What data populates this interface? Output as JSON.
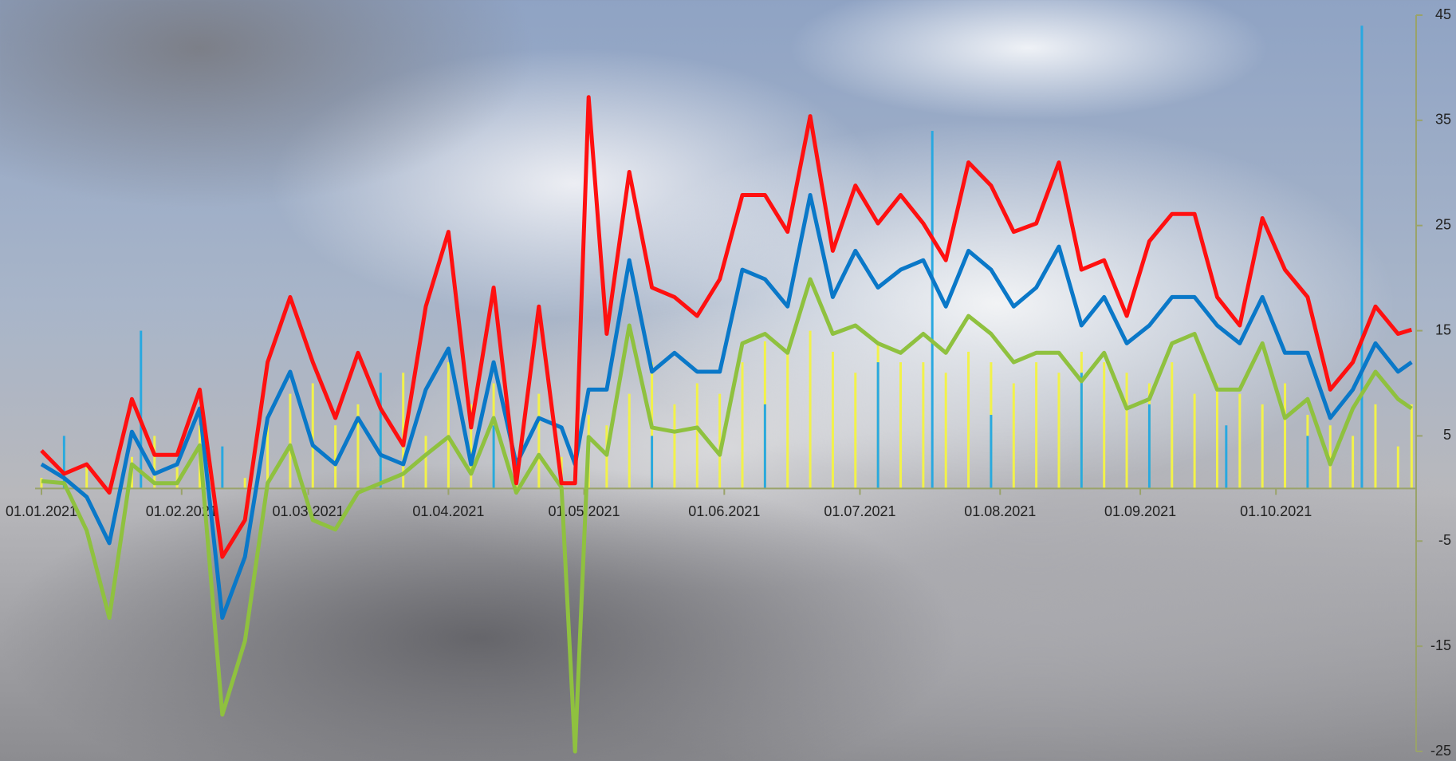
{
  "chart_data": {
    "type": "line",
    "x": [
      "01.01.2021",
      "06.01.2021",
      "11.01.2021",
      "16.01.2021",
      "21.01.2021",
      "26.01.2021",
      "31.01.2021",
      "05.02.2021",
      "10.02.2021",
      "15.02.2021",
      "20.02.2021",
      "25.02.2021",
      "02.03.2021",
      "07.03.2021",
      "12.03.2021",
      "17.03.2021",
      "22.03.2021",
      "27.03.2021",
      "01.04.2021",
      "06.04.2021",
      "11.04.2021",
      "16.04.2021",
      "21.04.2021",
      "26.04.2021",
      "29.04.2021",
      "02.05.2021",
      "06.05.2021",
      "11.05.2021",
      "16.05.2021",
      "21.05.2021",
      "26.05.2021",
      "31.05.2021",
      "05.06.2021",
      "10.06.2021",
      "15.06.2021",
      "20.06.2021",
      "25.06.2021",
      "30.06.2021",
      "05.07.2021",
      "10.07.2021",
      "15.07.2021",
      "20.07.2021",
      "25.07.2021",
      "30.07.2021",
      "04.08.2021",
      "09.08.2021",
      "14.08.2021",
      "19.08.2021",
      "24.08.2021",
      "29.08.2021",
      "03.09.2021",
      "08.09.2021",
      "13.09.2021",
      "18.09.2021",
      "23.09.2021",
      "28.09.2021",
      "03.10.2021",
      "08.10.2021",
      "13.10.2021",
      "18.10.2021",
      "23.10.2021",
      "28.10.2021",
      "31.10.2021"
    ],
    "series": [
      {
        "kind": "bar",
        "color": "#f2f24a",
        "values": [
          1,
          4,
          2,
          0,
          3,
          5,
          2,
          6,
          0,
          1,
          7,
          9,
          10,
          6,
          8,
          9,
          11,
          5,
          12,
          8,
          10,
          2,
          9,
          3,
          0,
          7,
          6,
          9,
          12,
          8,
          10,
          9,
          12,
          14,
          13,
          15,
          13,
          11,
          14,
          12,
          12,
          11,
          13,
          12,
          10,
          12,
          11,
          13,
          12,
          11,
          10,
          12,
          9,
          10,
          9,
          8,
          10,
          7,
          6,
          5,
          8,
          4,
          8
        ]
      },
      {
        "kind": "bar",
        "color": "#29a8e0",
        "x": [
          "06.01.2021",
          "23.01.2021",
          "10.02.2021",
          "17.03.2021",
          "11.04.2021",
          "16.05.2021",
          "10.06.2021",
          "05.07.2021",
          "17.07.2021",
          "30.07.2021",
          "19.08.2021",
          "03.09.2021",
          "20.09.2021",
          "08.10.2021",
          "20.10.2021"
        ],
        "values": [
          5,
          15,
          4,
          11,
          6,
          5,
          8,
          12,
          34,
          7,
          11,
          8,
          6,
          5,
          44
        ]
      },
      {
        "kind": "line",
        "color": "#8fc13f",
        "values": [
          0.7,
          0.5,
          -4,
          -12.3,
          2.3,
          0.5,
          0.5,
          4.1,
          -21.5,
          -14.5,
          0.5,
          4.1,
          -3,
          -3.9,
          -0.4,
          0.5,
          1.4,
          3.2,
          4.9,
          1.4,
          6.7,
          -0.4,
          3.2,
          0.1,
          -25,
          4.9,
          3.2,
          15.5,
          5.8,
          5.4,
          5.8,
          3.2,
          13.8,
          14.7,
          12.9,
          19.9,
          14.7,
          15.5,
          13.8,
          12.9,
          14.7,
          12.9,
          16.4,
          14.7,
          12,
          12.9,
          12.9,
          10.2,
          12.9,
          7.6,
          8.5,
          13.8,
          14.7,
          9.4,
          9.4,
          13.8,
          6.7,
          8.5,
          2.3,
          7.6,
          11.1,
          8.5,
          7.6
        ]
      },
      {
        "kind": "line",
        "color": "#0a78c8",
        "values": [
          2.3,
          1,
          -0.8,
          -5.2,
          5.4,
          1.4,
          2.3,
          7.6,
          -12.3,
          -6.5,
          6.7,
          11.1,
          4.1,
          2.3,
          6.7,
          3.2,
          2.3,
          9.4,
          13.3,
          2.3,
          12,
          2.3,
          6.7,
          5.8,
          2.3,
          9.4,
          9.4,
          21.7,
          11.1,
          12.9,
          11.1,
          11.1,
          20.8,
          19.9,
          17.3,
          27.9,
          18.2,
          22.6,
          19.1,
          20.8,
          21.7,
          17.3,
          22.6,
          20.8,
          17.3,
          19.1,
          23,
          15.5,
          18.2,
          13.8,
          15.5,
          18.2,
          18.2,
          15.5,
          13.8,
          18.2,
          12.9,
          12.9,
          6.7,
          9.4,
          13.8,
          11.1,
          12
        ]
      },
      {
        "kind": "line",
        "color": "#ff1010",
        "values": [
          3.6,
          1.4,
          2.3,
          -0.4,
          8.5,
          3.2,
          3.2,
          9.4,
          -6.5,
          -3,
          12,
          18.2,
          12,
          6.7,
          12.9,
          7.6,
          4.1,
          17.3,
          24.4,
          5.8,
          19.1,
          0.5,
          17.3,
          0.5,
          0.5,
          37.2,
          14.7,
          30.1,
          19.1,
          18.2,
          16.4,
          19.9,
          27.9,
          27.9,
          24.4,
          35.4,
          22.6,
          28.8,
          25.2,
          27.9,
          25.2,
          21.7,
          31,
          28.8,
          24.4,
          25.2,
          31,
          20.8,
          21.7,
          16.4,
          23.5,
          26.1,
          26.1,
          18.2,
          15.5,
          25.7,
          20.8,
          18.2,
          9.4,
          12,
          17.3,
          14.7,
          15.1
        ]
      }
    ],
    "xlim": [
      "01.01.2021",
      "01.11.2021"
    ],
    "xticks": [
      "01.01.2021",
      "01.02.2021",
      "01.03.2021",
      "01.04.2021",
      "01.05.2021",
      "01.06.2021",
      "01.07.2021",
      "01.08.2021",
      "01.09.2021",
      "01.10.2021"
    ],
    "ylim": [
      -25,
      45
    ],
    "yticks": [
      45,
      35,
      25,
      15,
      5,
      -5,
      -15,
      -25
    ]
  }
}
